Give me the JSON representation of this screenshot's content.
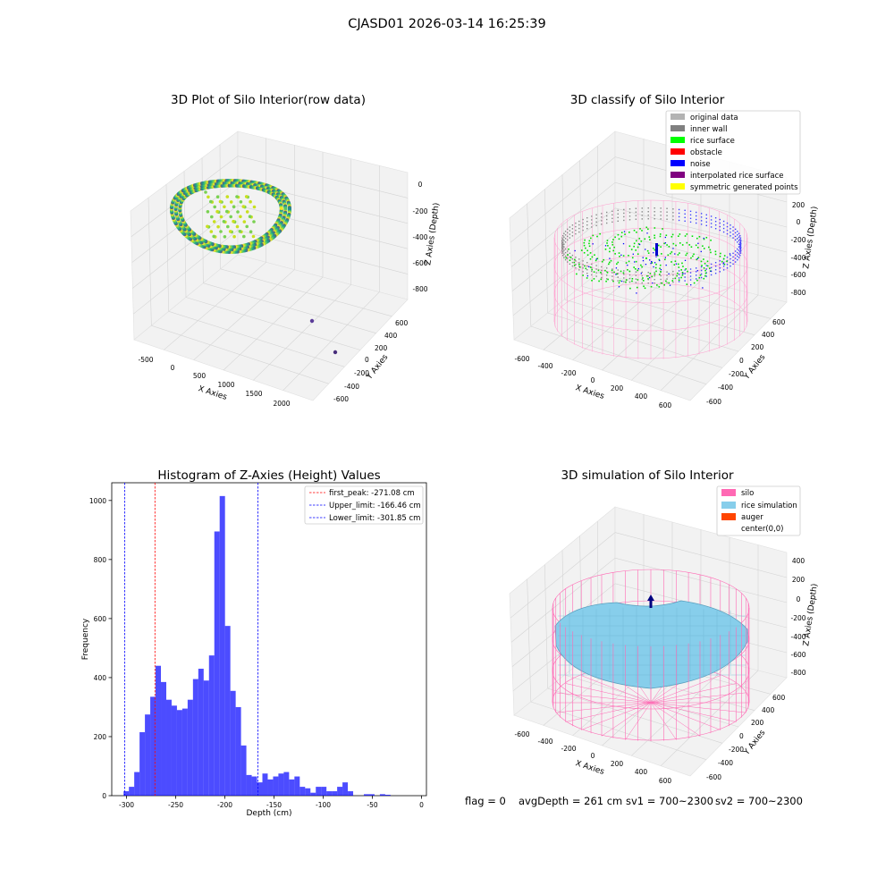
{
  "figure": {
    "suptitle": "CJASD01 2026-03-14 16:25:39",
    "status_line": {
      "flag": "flag = 0",
      "avg_depth": "avgDepth = 261 cm",
      "sv1": "sv1 = 700~2300",
      "sv2": "sv2 = 700~2300"
    }
  },
  "chart_data": [
    {
      "type": "scatter",
      "title": "3D Plot of Silo Interior(row data)",
      "xlabel": "X Axies",
      "ylabel": "Y Axies",
      "zlabel": "Z Axies (Depth)",
      "x_ticks": [
        "-500",
        "0",
        "500",
        "1000",
        "1500",
        "2000"
      ],
      "y_ticks": [
        "-600",
        "-400",
        "-200",
        "0",
        "200",
        "400",
        "600"
      ],
      "z_ticks": [
        "0",
        "-200",
        "-400",
        "-600",
        "-800"
      ],
      "colormap": "viridis",
      "description_points": "ring-shaped point cloud near origin, two outlier points around x≈1700-2000"
    },
    {
      "type": "scatter",
      "title": "3D classify of Silo Interior",
      "xlabel": "X Axies",
      "ylabel": "Y Axies",
      "zlabel": "Z Axies (Depth)",
      "x_ticks": [
        "-600",
        "-400",
        "-200",
        "0",
        "200",
        "400",
        "600"
      ],
      "y_ticks": [
        "-600",
        "-400",
        "-200",
        "0",
        "200",
        "400",
        "600"
      ],
      "z_ticks": [
        "200",
        "0",
        "-200",
        "-400",
        "-600",
        "-800"
      ],
      "legend": [
        {
          "label": "original data",
          "color": "#b3b3b3"
        },
        {
          "label": "inner wall",
          "color": "#808080"
        },
        {
          "label": "rice surface",
          "color": "#00ff00"
        },
        {
          "label": "obstacle",
          "color": "#ff0000"
        },
        {
          "label": "noise",
          "color": "#0000ff"
        },
        {
          "label": "interpolated rice surface",
          "color": "#800080"
        },
        {
          "label": "symmetric generated points",
          "color": "#ffff00"
        }
      ],
      "legend_position": "top-right"
    },
    {
      "type": "bar",
      "title": "Histogram of Z-Axies (Height) Values",
      "xlabel": "Depth (cm)",
      "ylabel": "Frequency",
      "xlim": [
        -315,
        5
      ],
      "ylim": [
        0,
        1060
      ],
      "x_ticks": [
        -300,
        -250,
        -200,
        -150,
        -100,
        -50,
        0
      ],
      "y_ticks": [
        0,
        200,
        400,
        600,
        800,
        1000
      ],
      "bin_width": 5.43,
      "bin_start": -303.0,
      "values": [
        15,
        30,
        80,
        215,
        275,
        335,
        440,
        385,
        325,
        305,
        290,
        295,
        325,
        395,
        430,
        390,
        475,
        895,
        1015,
        575,
        355,
        300,
        170,
        70,
        65,
        45,
        75,
        55,
        65,
        75,
        80,
        55,
        65,
        30,
        25,
        10,
        30,
        30,
        15,
        15,
        30,
        45,
        15,
        0,
        0,
        5,
        5,
        0,
        5,
        3
      ],
      "bar_color": "#0000ff",
      "vlines": [
        {
          "x": -271.08,
          "label": "first_peak: -271.08 cm",
          "color": "#ff0000"
        },
        {
          "x": -166.46,
          "label": "Upper_limit: -166.46 cm",
          "color": "#0000ff"
        },
        {
          "x": -301.85,
          "label": "Lower_limit: -301.85 cm",
          "color": "#0000ff"
        }
      ],
      "legend_position": "top-right"
    },
    {
      "type": "area",
      "title": "3D simulation of Silo Interior",
      "xlabel": "X Axies",
      "ylabel": "Y Axies",
      "zlabel": "Z Axies (Depth)",
      "x_ticks": [
        "-600",
        "-400",
        "-200",
        "0",
        "200",
        "400",
        "600"
      ],
      "y_ticks": [
        "-600",
        "-400",
        "-200",
        "0",
        "200",
        "400",
        "600"
      ],
      "z_ticks": [
        "400",
        "200",
        "0",
        "-200",
        "-400",
        "-600",
        "-800"
      ],
      "legend": [
        {
          "label": "silo",
          "color": "#ff69b4"
        },
        {
          "label": "rice simulation",
          "color": "#87ceeb"
        },
        {
          "label": "auger",
          "color": "#ff4500"
        },
        {
          "label": "center(0,0)",
          "color": "none"
        }
      ],
      "legend_position": "top-right"
    }
  ]
}
